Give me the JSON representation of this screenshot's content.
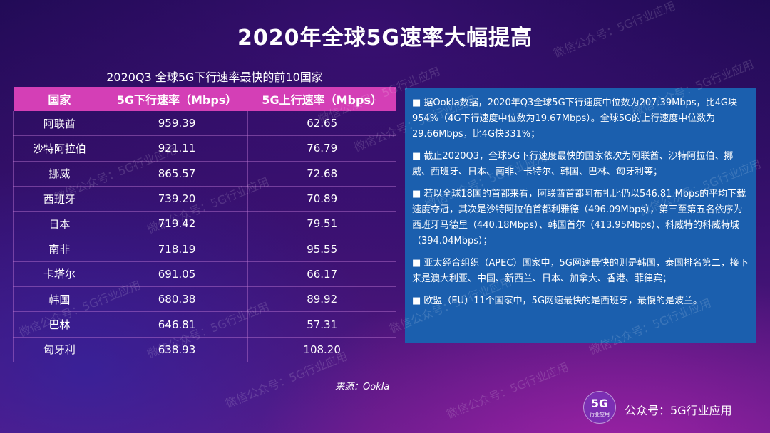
{
  "title": "2020年全球5G速率大幅提高",
  "table": {
    "caption": "2020Q3 全球5G下行速率最快的前10国家",
    "headers": [
      "国家",
      "5G下行速率（Mbps）",
      "5G上行速率（Mbps）"
    ],
    "rows": [
      [
        "阿联酋",
        "959.39",
        "62.65"
      ],
      [
        "沙特阿拉伯",
        "921.11",
        "76.79"
      ],
      [
        "挪威",
        "865.57",
        "72.68"
      ],
      [
        "西班牙",
        "739.20",
        "70.89"
      ],
      [
        "日本",
        "719.42",
        "79.51"
      ],
      [
        "南非",
        "718.19",
        "95.55"
      ],
      [
        "卡塔尔",
        "691.05",
        "66.17"
      ],
      [
        "韩国",
        "680.38",
        "89.92"
      ],
      [
        "巴林",
        "646.81",
        "57.31"
      ],
      [
        "匈牙利",
        "638.93",
        "108.20"
      ]
    ]
  },
  "bullets": [
    "■ 据Ookla数据，2020年Q3全球5G下行速度中位数为207.39Mbps，比4G块954%（4G下行速度中位数为19.67Mbps）。全球5G的上行速度中位数为29.66Mbps，比4G快331%；",
    "■ 截止2020Q3，全球5G下行速度最快的国家依次为阿联酋、沙特阿拉伯、挪威、西班牙、日本、南非、卡特尔、韩国、巴林、匈牙利等；",
    "■ 若以全球18国的首都来看，阿联酋首都阿布扎比仍以546.81 Mbps的平均下载速度夺冠，其次是沙特阿拉伯首都利雅德（496.09Mbps），第三至第五名依序为西班牙马德里（440.18Mbps）、韩国首尔（413.95Mbps）、科威特的科威特城（394.04Mbps）；",
    "■ 亚太经合组织（APEC）国家中，5G网速最快的则是韩国，泰国排名第二，接下来是澳大利亚、中国、新西兰、日本、加拿大、香港、菲律宾；",
    "■ 欧盟（EU）11个国家中，5G网速最快的是西班牙，最慢的是波兰。"
  ],
  "source": "来源：Ookla",
  "logo": {
    "big": "5G",
    "small": "行业应用"
  },
  "account": "公众号：5G行业应用",
  "watermark": "微信公众号：5G行业应用",
  "colors": {
    "header": "#d43fb6",
    "textbox": "#1b5fae"
  }
}
